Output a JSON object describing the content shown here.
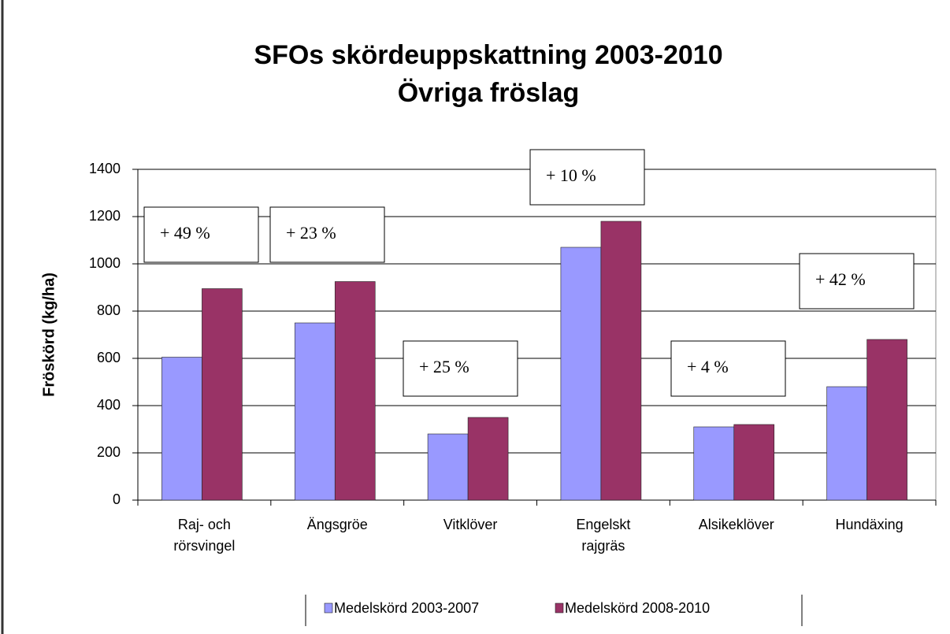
{
  "chart_data": {
    "type": "bar",
    "title": "SFOs skördeuppskattning 2003-2010",
    "subtitle": "Övriga fröslag",
    "y_label": "Fröskörd (kg/ha)",
    "categories": [
      "Raj- och\nrörsvingel",
      "Ängsgröe",
      "Vitklöver",
      "Engelskt\nrajgräs",
      "Alsikeklöver",
      "Hundäxing"
    ],
    "series": [
      {
        "name": "Medelskörd 2003-2007",
        "color": "#9999ff",
        "values": [
          605,
          750,
          280,
          1070,
          310,
          480
        ]
      },
      {
        "name": "Medelskörd 2008-2010",
        "color": "#993366",
        "values": [
          895,
          925,
          350,
          1180,
          320,
          680
        ]
      }
    ],
    "annotations": [
      "+ 49 %",
      "+ 23 %",
      "+ 25 %",
      "+ 10 %",
      "+ 4 %",
      "+ 42 %"
    ],
    "ylim": [
      0,
      1400
    ],
    "yticks": [
      0,
      200,
      400,
      600,
      800,
      1000,
      1200,
      1400
    ],
    "grid": true
  }
}
